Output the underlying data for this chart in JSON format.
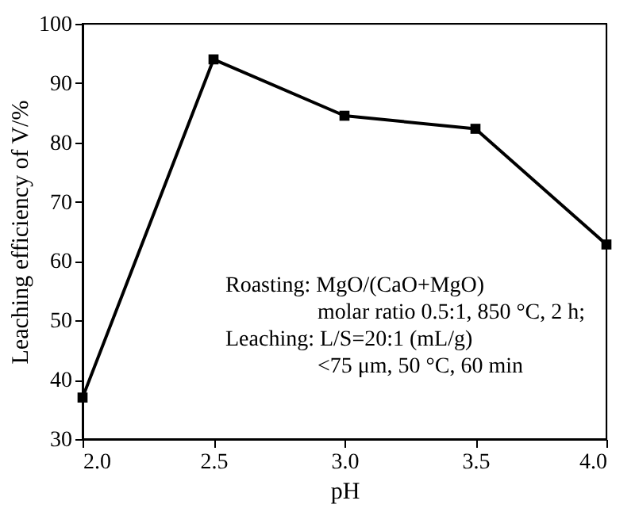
{
  "chart_data": {
    "type": "line",
    "xlabel": "pH",
    "ylabel": "Leaching efficiency of V/%",
    "x": [
      2.0,
      2.5,
      3.0,
      3.5,
      4.0
    ],
    "series": [
      {
        "color": "#000000",
        "values": [
          37,
          94,
          84.5,
          82.3,
          62.8
        ]
      }
    ],
    "xlim": [
      2.0,
      4.0
    ],
    "xticks": [
      {
        "value": 2.0,
        "label": "2.0"
      },
      {
        "value": 2.5,
        "label": "2.5"
      },
      {
        "value": 3.0,
        "label": "3.0"
      },
      {
        "value": 3.5,
        "label": "3.5"
      },
      {
        "value": 4.0,
        "label": "4.0"
      }
    ],
    "ylim": [
      30,
      100
    ],
    "yticks": [
      30,
      40,
      50,
      60,
      70,
      80,
      90,
      100
    ],
    "marker": "square",
    "line_style": "solid",
    "grid": false,
    "annotations": [
      "Roasting: MgO/(CaO+MgO)",
      "molar ratio 0.5:1, 850 °C, 2 h;",
      "Leaching: L/S=20:1 (mL/g)",
      "<75 μm, 50 °C, 60 min"
    ]
  }
}
